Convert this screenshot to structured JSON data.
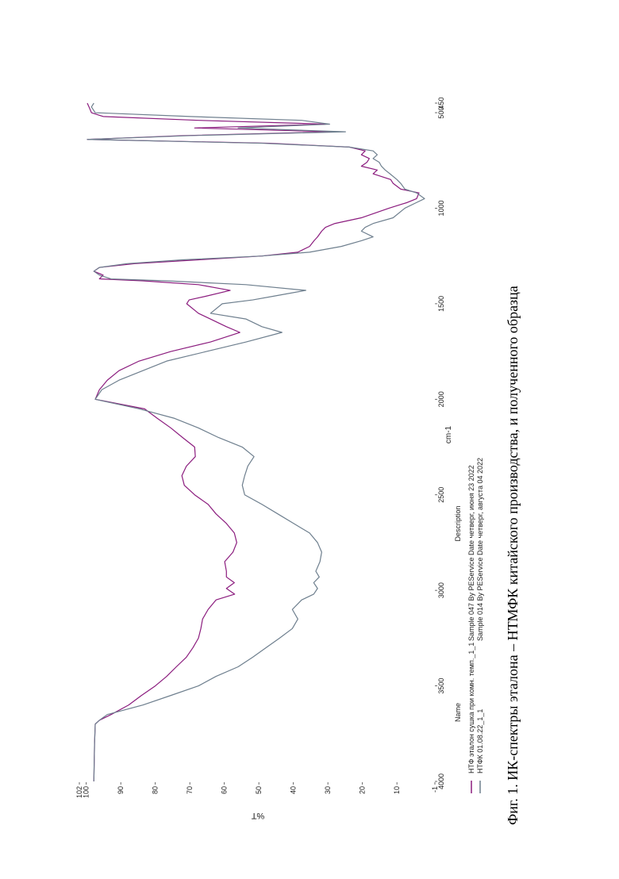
{
  "chart_data": {
    "type": "line",
    "x_label": "cm-1",
    "y_label": "%T",
    "legend_headers": [
      "Name",
      "Description"
    ],
    "x": [
      4000,
      3800,
      3700,
      3680,
      3650,
      3600,
      3550,
      3500,
      3450,
      3400,
      3350,
      3300,
      3250,
      3200,
      3150,
      3100,
      3050,
      3020,
      2990,
      2960,
      2930,
      2900,
      2850,
      2800,
      2750,
      2700,
      2650,
      2600,
      2550,
      2500,
      2450,
      2400,
      2350,
      2300,
      2250,
      2200,
      2150,
      2100,
      2050,
      2000,
      1950,
      1900,
      1850,
      1800,
      1750,
      1700,
      1650,
      1620,
      1580,
      1550,
      1500,
      1480,
      1460,
      1430,
      1400,
      1380,
      1370,
      1350,
      1330,
      1310,
      1290,
      1270,
      1250,
      1230,
      1200,
      1170,
      1150,
      1120,
      1100,
      1080,
      1050,
      1000,
      970,
      950,
      920,
      900,
      870,
      850,
      820,
      800,
      780,
      760,
      740,
      720,
      700,
      680,
      660,
      640,
      620,
      600,
      580,
      560,
      540,
      520,
      500,
      470,
      450
    ],
    "series": [
      {
        "name": "НТФ эталон сушка при комн. темп._1_1",
        "description": "Sample 047 By PEService Date четверг, июня 23 2022",
        "color": "#8b1c7e",
        "values": [
          97.8,
          97.6,
          97.4,
          96.2,
          92.8,
          87.7,
          84,
          80,
          76.7,
          73.9,
          71,
          69.1,
          67.5,
          66.8,
          66.3,
          64.7,
          62.4,
          57,
          59.4,
          57.1,
          59.4,
          59.4,
          59.9,
          57.5,
          56.4,
          57.1,
          59.4,
          62.4,
          64.7,
          68.6,
          71.6,
          72.3,
          71,
          68.4,
          68.6,
          72.1,
          75.5,
          79.4,
          83.1,
          97.4,
          96.2,
          93.9,
          90.5,
          84.7,
          75.5,
          64,
          55.5,
          59.4,
          64,
          67.5,
          70.9,
          70.2,
          65.2,
          58.3,
          67.5,
          83.6,
          96.2,
          95.1,
          97.8,
          96.2,
          85.9,
          67.5,
          49.1,
          38.7,
          35.3,
          34,
          33,
          31.8,
          30.7,
          28,
          20.3,
          12.3,
          7,
          4.3,
          3.6,
          8.9,
          11.1,
          11.8,
          16.9,
          15.7,
          20.3,
          18.7,
          18,
          20.3,
          19.2,
          23.8,
          46.8,
          99.7,
          72.1,
          28.4,
          68.6,
          30.7,
          67.5,
          95.1,
          98.5,
          99.2,
          99.7
        ]
      },
      {
        "name": "НТФК 01.08.22_1_1",
        "description": "Sample 014 By PEService Date четверг, августа 04 2022",
        "color": "#6e7f8e",
        "values": [
          97.8,
          97.6,
          97.4,
          96.2,
          93.9,
          83.6,
          75.5,
          67.5,
          62.4,
          56,
          51.8,
          47.9,
          44,
          40.3,
          38.7,
          40.3,
          37.6,
          34.1,
          33,
          34.1,
          32.5,
          33.5,
          32.3,
          31.8,
          33,
          35.3,
          39.9,
          44.5,
          49.1,
          54.1,
          54.8,
          54.1,
          53.2,
          51.4,
          54.8,
          61.7,
          67.5,
          74.4,
          84.7,
          97.4,
          95.5,
          90.5,
          83.6,
          76.7,
          65.2,
          53.7,
          43.3,
          49.1,
          53.7,
          64,
          60.6,
          51.8,
          45.6,
          36.4,
          53.7,
          76.7,
          92.8,
          96.2,
          97.8,
          96.2,
          88.2,
          72.1,
          49.1,
          35.3,
          26.1,
          20.3,
          16.9,
          20.3,
          19.2,
          16.9,
          11.1,
          7.7,
          4.3,
          2,
          4.3,
          7.7,
          8.9,
          10,
          12,
          13.4,
          14.5,
          15.1,
          16.9,
          15.7,
          16.9,
          23.8,
          49.1,
          99.7,
          69.8,
          24.9,
          56,
          29.5,
          37.6,
          69.8,
          97.4,
          98.5,
          97.8
        ]
      }
    ],
    "xlim": [
      4000,
      450
    ],
    "xticks": [
      4000,
      3500,
      3000,
      2500,
      2000,
      1500,
      1000,
      500,
      450
    ],
    "ylim": [
      -1,
      102
    ],
    "yticks": [
      102,
      100,
      90,
      80,
      70,
      60,
      50,
      40,
      30,
      20,
      10,
      -1
    ]
  },
  "caption": "Фиг. 1. ИК-спектры эталона – НТМФК китайского производства, и полученного образца"
}
